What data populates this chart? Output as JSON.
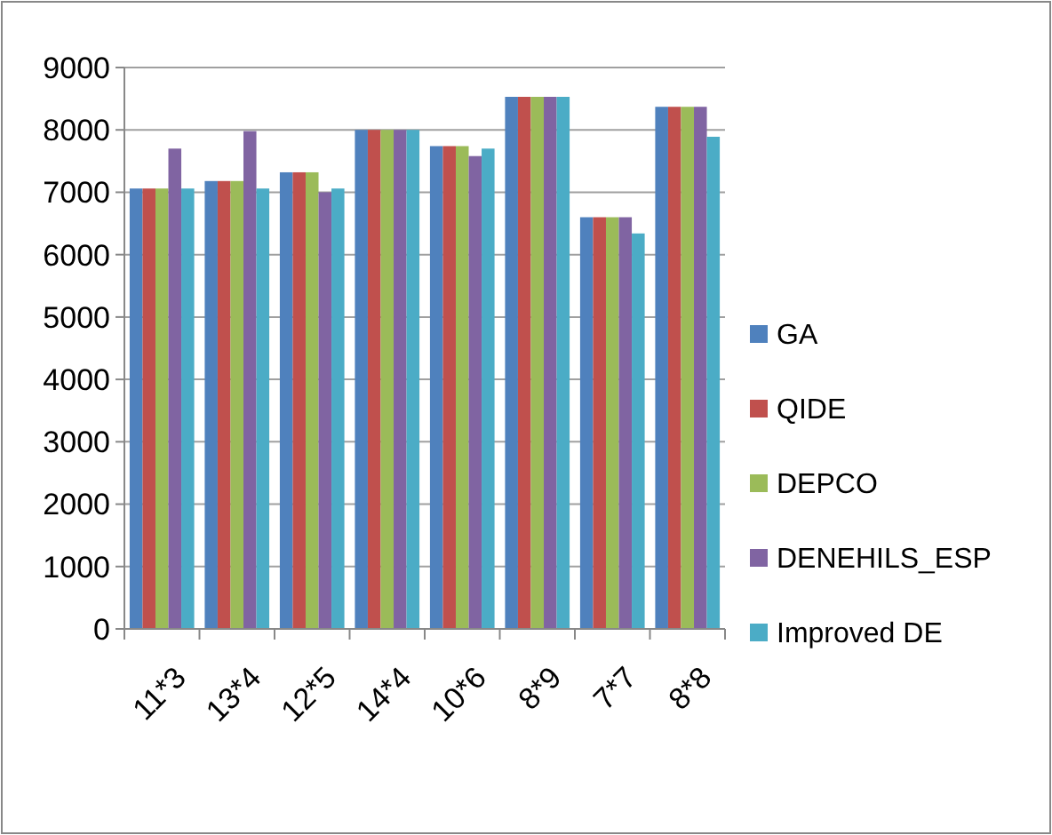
{
  "chart_data": {
    "type": "bar",
    "categories": [
      "11*3",
      "13*4",
      "12*5",
      "14*4",
      "10*6",
      "8*9",
      "7*7",
      "8*8"
    ],
    "series": [
      {
        "name": "GA",
        "color": "#4f81bd",
        "values": [
          7060,
          7180,
          7320,
          8000,
          7740,
          8530,
          6600,
          8370
        ]
      },
      {
        "name": "QIDE",
        "color": "#c0504d",
        "values": [
          7060,
          7180,
          7320,
          8000,
          7740,
          8530,
          6600,
          8370
        ]
      },
      {
        "name": "DEPCO",
        "color": "#9bbb59",
        "values": [
          7060,
          7180,
          7320,
          8000,
          7740,
          8530,
          6600,
          8370
        ]
      },
      {
        "name": "DENEHILS_ESP",
        "color": "#8064a2",
        "values": [
          7700,
          7980,
          7000,
          8000,
          7580,
          8530,
          6600,
          8370
        ]
      },
      {
        "name": "Improved DE",
        "color": "#4bacc6",
        "values": [
          7060,
          7060,
          7060,
          8000,
          7700,
          8530,
          6340,
          7890
        ]
      }
    ],
    "ylim": [
      0,
      9000
    ],
    "yticks": [
      0,
      1000,
      2000,
      3000,
      4000,
      5000,
      6000,
      7000,
      8000,
      9000
    ],
    "grid": "y",
    "legend": "right"
  }
}
